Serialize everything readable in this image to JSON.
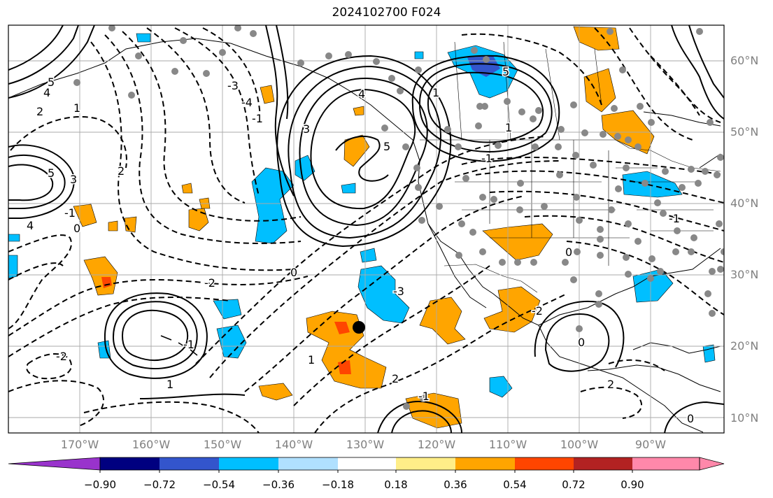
{
  "title": "2024102700 F024",
  "lat_labels": [
    "60°N",
    "50°N",
    "40°N",
    "30°N",
    "20°N",
    "10°N"
  ],
  "lon_labels": [
    "170°W",
    "160°W",
    "150°W",
    "140°W",
    "130°W",
    "120°W",
    "110°W",
    "100°W",
    "90°W"
  ],
  "colorbar": {
    "colors": [
      "#9933cc",
      "#000080",
      "#3355cc",
      "#00bfff",
      "#b0e0ff",
      "#ffffff",
      "#ffee88",
      "#ffa500",
      "#ff4500",
      "#b22222",
      "#ff88aa"
    ],
    "tick_labels": [
      "−0.90",
      "−0.72",
      "−0.54",
      "−0.36",
      "−0.18",
      "0.18",
      "0.36",
      "0.54",
      "0.72",
      "0.90"
    ]
  },
  "contour_labels": [
    "5",
    "4",
    "2",
    "1",
    "5",
    "3",
    "4",
    "0",
    "-1",
    "2",
    "-2",
    "-3",
    "-4",
    "-1",
    "0",
    "1",
    "2",
    "-1",
    "-3",
    "5",
    "3",
    "4",
    "5",
    "1",
    "-2",
    "0",
    "1",
    "0",
    "1",
    "-1",
    "-1",
    "-2",
    "2",
    "-1",
    "0"
  ],
  "colors": {
    "orange": "#ffa500",
    "red": "#ff4500",
    "cyan": "#00bfff",
    "blue": "#3355cc",
    "gray_dot": "#888888",
    "grid": "#aaaaaa"
  }
}
